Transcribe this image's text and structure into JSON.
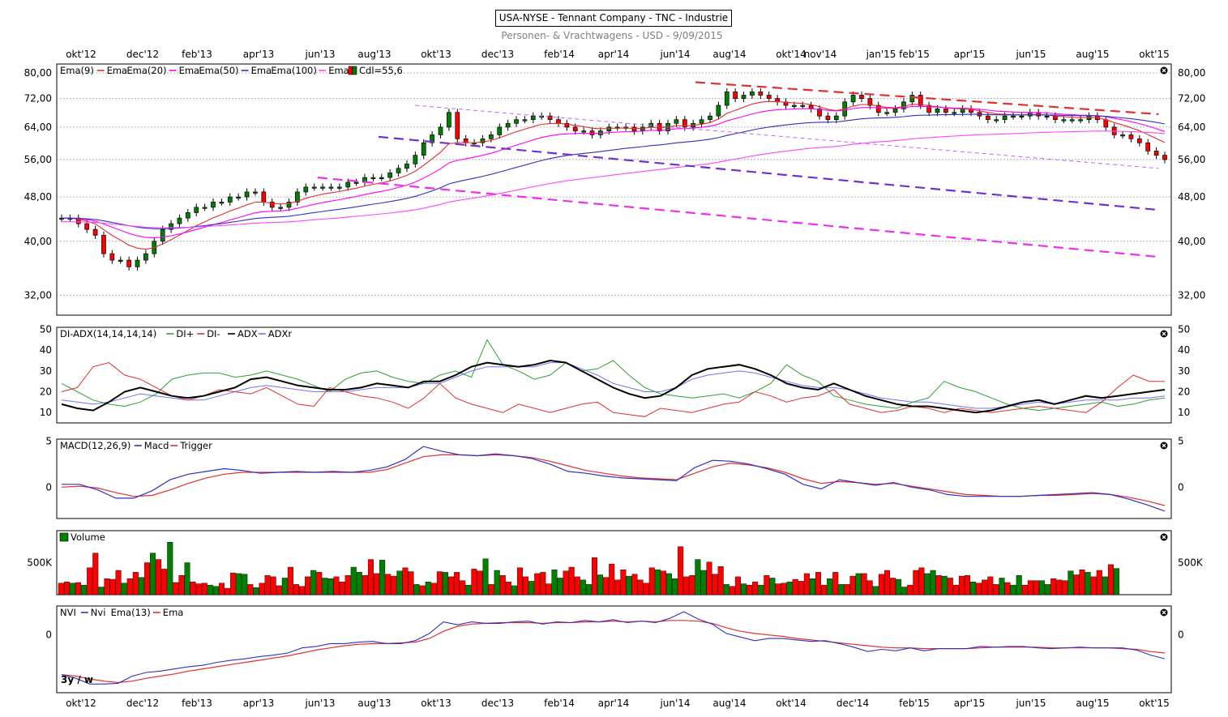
{
  "header": {
    "title": "USA-NYSE - Tennant Company - TNC - Industrie",
    "subtitle": "Personen- & Vrachtwagens - USD - 9/09/2015"
  },
  "period_label": "3y / w",
  "colors": {
    "up": "#008000",
    "down": "#ff0000",
    "ema9": "#e03030",
    "ema20": "#ff00ff",
    "ema50": "#3030c0",
    "ema100": "#ff44ff",
    "di_plus": "#30a030",
    "di_minus": "#e03030",
    "adx": "#000000",
    "adxr": "#7070ff",
    "macd": "#3030c0",
    "trigger": "#e03030",
    "nvi": "#3030c0",
    "nvi_ema": "#e03030"
  },
  "close_icon": "close-icon",
  "chart_data": [
    {
      "type": "candlestick",
      "name": "price",
      "x_tick_labels": [
        "okt'12",
        "dec'12",
        "feb'13",
        "apr'13",
        "jun'13",
        "aug'13",
        "okt'13",
        "dec'13",
        "feb'14",
        "apr'14",
        "jun'14",
        "aug'14",
        "okt'14",
        "nov'14",
        "jan'15",
        "feb'15",
        "apr'15",
        "jun'15",
        "aug'15",
        "okt'15"
      ],
      "x_tick_labels_bottom": [
        "okt'12",
        "dec'12",
        "feb'13",
        "apr'13",
        "jun'13",
        "aug'13",
        "okt'13",
        "dec'13",
        "feb'14",
        "apr'14",
        "jun'14",
        "aug'14",
        "okt'14",
        "dec'14",
        "feb'15",
        "apr'15",
        "jun'15",
        "aug'15",
        "okt'15"
      ],
      "y_scale": "log",
      "y_ticks": [
        "80,00",
        "72,00",
        "64,00",
        "56,00",
        "48,00",
        "40,00",
        "32,00"
      ],
      "y_tick_values": [
        80,
        72,
        64,
        56,
        48,
        40,
        32
      ],
      "ylim": [
        29.5,
        83
      ],
      "legend": [
        "Ema(9)",
        "Ema",
        "Ema(20)",
        "Ema",
        "Ema(50)",
        "Ema",
        "Ema(100)",
        "Ema",
        "Cdl=55,6"
      ],
      "closes": [
        44,
        44,
        43,
        42,
        41,
        38,
        37,
        37,
        36,
        37,
        38,
        40,
        42,
        43,
        44,
        45,
        46,
        46,
        47,
        47,
        48,
        48,
        49,
        49,
        47,
        46,
        46,
        47,
        49,
        50,
        50,
        50,
        50,
        50,
        51,
        51,
        52,
        52,
        52,
        53,
        54,
        55,
        57,
        60,
        62,
        64,
        68,
        61,
        60,
        60,
        61,
        62,
        64,
        65,
        66,
        66,
        67,
        67,
        66,
        65,
        64,
        63,
        63,
        62,
        63,
        64,
        64,
        64,
        63,
        64,
        65,
        63,
        65,
        66,
        64,
        65,
        66,
        67,
        70,
        74,
        72,
        73,
        74,
        73,
        72,
        71,
        70,
        70,
        70,
        69,
        67,
        66,
        67,
        71,
        73,
        72,
        70,
        68,
        68,
        69,
        71,
        73,
        70,
        68,
        69,
        68,
        68,
        69,
        68,
        67,
        66,
        66,
        67,
        67,
        67,
        68,
        67,
        67,
        66,
        66,
        66,
        66,
        67,
        66,
        64,
        62,
        62,
        61,
        60,
        58,
        57,
        56
      ],
      "trend_lines": [
        {
          "from": [
            "week",
            104
          ],
          "to": [
            "week",
            180
          ],
          "values": [
            77,
            67.5
          ],
          "color": "#e03030",
          "style": "dashed"
        },
        {
          "from": [
            "week",
            58
          ],
          "to": [
            "week",
            180
          ],
          "values": [
            70,
            54
          ],
          "color": "#c060ff",
          "style": "dashed-thin"
        },
        {
          "from": [
            "week",
            52
          ],
          "to": [
            "week",
            180
          ],
          "values": [
            61.5,
            45.5
          ],
          "color": "#7030d0",
          "style": "dashed"
        },
        {
          "from": [
            "week",
            42
          ],
          "to": [
            "week",
            180
          ],
          "values": [
            52,
            37.5
          ],
          "color": "#ee30ee",
          "style": "dashed"
        }
      ]
    },
    {
      "type": "line",
      "name": "DI-ADX",
      "legend": [
        "DI-ADX(14,14,14,14)",
        "DI+",
        "DI-",
        "ADX",
        "ADXr"
      ],
      "y_ticks": [
        "50",
        "40",
        "30",
        "20",
        "10"
      ],
      "y_tick_values": [
        50,
        40,
        30,
        20,
        10
      ],
      "ylim": [
        5,
        51
      ],
      "series": [
        {
          "name": "DI+",
          "values": [
            24,
            20,
            16,
            14,
            13,
            15,
            19,
            26,
            28,
            29,
            29,
            27,
            28,
            30,
            28,
            26,
            23,
            20,
            26,
            29,
            30,
            27,
            25,
            24,
            28,
            30,
            27,
            45,
            33,
            30,
            26,
            28,
            34,
            30,
            31,
            35,
            28,
            22,
            19,
            18,
            17,
            18,
            19,
            17,
            20,
            24,
            33,
            28,
            25,
            18,
            16,
            14,
            13,
            12,
            15,
            17,
            25,
            22,
            20,
            17,
            14,
            12,
            11,
            12,
            13,
            14,
            15,
            13,
            14,
            16,
            17
          ]
        },
        {
          "name": "DI-",
          "values": [
            20,
            22,
            32,
            34,
            28,
            26,
            22,
            18,
            16,
            18,
            21,
            20,
            19,
            22,
            18,
            14,
            13,
            22,
            20,
            18,
            17,
            15,
            12,
            17,
            24,
            17,
            14,
            12,
            10,
            14,
            12,
            10,
            12,
            14,
            15,
            10,
            9,
            8,
            12,
            11,
            10,
            12,
            14,
            15,
            20,
            18,
            15,
            17,
            18,
            21,
            14,
            12,
            10,
            11,
            13,
            12,
            10,
            12,
            11,
            10,
            11,
            12,
            13,
            12,
            11,
            10,
            15,
            22,
            28,
            25,
            25
          ]
        },
        {
          "name": "ADX",
          "values": [
            14,
            12,
            11,
            15,
            20,
            22,
            20,
            18,
            17,
            18,
            20,
            22,
            26,
            27,
            25,
            23,
            22,
            21,
            21,
            22,
            24,
            23,
            22,
            25,
            25,
            28,
            32,
            34,
            33,
            32,
            33,
            35,
            34,
            30,
            26,
            22,
            19,
            17,
            18,
            22,
            28,
            31,
            32,
            33,
            31,
            28,
            24,
            22,
            21,
            24,
            21,
            18,
            16,
            14,
            13,
            13,
            12,
            11,
            10,
            11,
            13,
            15,
            16,
            14,
            16,
            18,
            17,
            18,
            19,
            20,
            21
          ]
        },
        {
          "name": "ADXr",
          "values": [
            16,
            15,
            14,
            15,
            17,
            19,
            18,
            17,
            16,
            16,
            18,
            20,
            22,
            23,
            22,
            21,
            20,
            20,
            20,
            21,
            22,
            22,
            22,
            24,
            24,
            27,
            30,
            32,
            32,
            32,
            32,
            34,
            34,
            31,
            28,
            24,
            22,
            20,
            20,
            22,
            26,
            28,
            29,
            30,
            29,
            27,
            25,
            23,
            22,
            22,
            21,
            19,
            17,
            16,
            15,
            15,
            14,
            13,
            12,
            12,
            13,
            14,
            15,
            14,
            15,
            16,
            16,
            16,
            17,
            17,
            18
          ]
        }
      ]
    },
    {
      "type": "line",
      "name": "MACD",
      "legend": [
        "MACD(12,26,9)",
        "Macd",
        "Trigger"
      ],
      "y_ticks": [
        "5",
        "0"
      ],
      "y_tick_values": [
        5,
        0
      ],
      "ylim": [
        -3.4,
        5.2
      ],
      "series": [
        {
          "name": "Macd",
          "values": [
            0.3,
            0.3,
            -0.3,
            -1.2,
            -1.2,
            -0.4,
            0.8,
            1.4,
            1.7,
            2,
            1.8,
            1.5,
            1.6,
            1.7,
            1.6,
            1.7,
            1.6,
            1.8,
            2.2,
            3,
            4.4,
            3.9,
            3.5,
            3.4,
            3.6,
            3.4,
            3.1,
            2.5,
            1.7,
            1.5,
            1.2,
            1,
            0.9,
            0.8,
            0.7,
            2.1,
            2.9,
            2.8,
            2.5,
            2,
            1.4,
            0.3,
            -0.2,
            0.8,
            0.5,
            0.2,
            0.5,
            0,
            -0.3,
            -0.8,
            -1,
            -1,
            -1,
            -1,
            -0.9,
            -0.8,
            -0.7,
            -0.6,
            -0.8,
            -1.3,
            -1.9,
            -2.6
          ]
        },
        {
          "name": "Trigger",
          "values": [
            0,
            0.1,
            -0.1,
            -0.6,
            -1,
            -0.9,
            -0.3,
            0.4,
            1,
            1.4,
            1.6,
            1.6,
            1.6,
            1.6,
            1.6,
            1.6,
            1.6,
            1.6,
            1.9,
            2.6,
            3.3,
            3.5,
            3.5,
            3.4,
            3.5,
            3.4,
            3.2,
            2.8,
            2.3,
            1.8,
            1.5,
            1.2,
            1,
            0.9,
            0.8,
            1.5,
            2.2,
            2.6,
            2.4,
            2.1,
            1.6,
            0.9,
            0.4,
            0.6,
            0.5,
            0.3,
            0.4,
            0.1,
            -0.2,
            -0.5,
            -0.8,
            -0.9,
            -1,
            -1,
            -0.9,
            -0.9,
            -0.8,
            -0.7,
            -0.8,
            -1.1,
            -1.5,
            -2
          ]
        }
      ]
    },
    {
      "type": "bar",
      "name": "Volume",
      "legend": [
        "Volume"
      ],
      "y_ticks": [
        "500K"
      ],
      "y_tick_values": [
        500
      ],
      "ylim": [
        0,
        1000
      ],
      "unit": "K",
      "values": [
        180,
        200,
        180,
        190,
        150,
        420,
        650,
        120,
        250,
        240,
        380,
        180,
        250,
        350,
        270,
        500,
        650,
        550,
        400,
        820,
        190,
        300,
        500,
        200,
        170,
        180,
        150,
        130,
        180,
        100,
        340,
        330,
        320,
        160,
        110,
        180,
        300,
        280,
        140,
        260,
        430,
        160,
        130,
        280,
        380,
        350,
        260,
        250,
        280,
        200,
        300,
        430,
        350,
        300,
        550,
        330,
        540,
        320,
        290,
        370,
        420,
        360,
        160,
        140,
        200,
        180,
        360,
        350,
        280,
        350,
        220,
        150,
        400,
        370,
        560,
        160,
        380,
        300,
        200,
        140,
        420,
        280,
        210,
        330,
        350,
        170,
        390,
        260,
        370,
        430,
        280,
        230,
        160,
        580,
        310,
        270,
        480,
        230,
        390,
        290,
        320,
        230,
        180,
        420,
        390,
        370,
        330,
        250,
        750,
        280,
        300,
        550,
        380,
        510,
        320,
        440,
        160,
        130,
        280,
        170,
        150,
        200,
        150,
        300,
        260,
        170,
        180,
        200,
        240,
        210,
        330,
        250,
        350,
        150,
        250,
        350,
        160,
        160,
        290,
        330,
        330,
        220,
        130,
        320,
        380,
        260,
        240,
        120,
        150,
        380,
        420,
        330,
        380,
        300,
        290,
        260,
        150,
        290,
        300,
        200,
        180,
        230,
        280,
        160,
        260,
        190,
        150,
        300,
        150,
        220,
        220,
        220,
        160,
        250,
        230,
        220,
        370,
        310,
        390,
        350,
        280,
        380,
        280,
        470,
        410
      ]
    },
    {
      "type": "line",
      "name": "NVI",
      "legend": [
        "NVI",
        "Nvi",
        "Ema(13)",
        "Ema"
      ],
      "y_ticks": [
        "0"
      ],
      "y_tick_values": [
        0
      ],
      "ylim": [
        -80,
        40
      ],
      "series": [
        {
          "name": "Nvi",
          "values": [
            -55,
            -60,
            -68,
            -68,
            -67,
            -57,
            -52,
            -50,
            -47,
            -44,
            -42,
            -38,
            -35,
            -33,
            -30,
            -28,
            -25,
            -18,
            -16,
            -12,
            -12,
            -10,
            -9,
            -12,
            -12,
            -8,
            2,
            18,
            14,
            18,
            16,
            16,
            18,
            19,
            15,
            18,
            17,
            20,
            18,
            21,
            17,
            19,
            17,
            23,
            32,
            22,
            15,
            2,
            -3,
            -8,
            -5,
            -5,
            -7,
            -9,
            -8,
            -12,
            -17,
            -23,
            -20,
            -22,
            -18,
            -22,
            -19,
            -19,
            -19,
            -16,
            -17,
            -16,
            -16,
            -18,
            -19,
            -18,
            -17,
            -18,
            -18,
            -18,
            -21,
            -28,
            -33
          ]
        },
        {
          "name": "Ema",
          "values": [
            -55,
            -57,
            -61,
            -64,
            -66,
            -64,
            -60,
            -57,
            -54,
            -50,
            -47,
            -44,
            -41,
            -38,
            -35,
            -32,
            -29,
            -25,
            -21,
            -18,
            -15,
            -13,
            -12,
            -12,
            -11,
            -10,
            -5,
            5,
            12,
            15,
            16,
            17,
            17,
            17,
            16,
            17,
            17,
            18,
            18,
            19,
            18,
            19,
            18,
            20,
            20,
            19,
            16,
            10,
            5,
            2,
            0,
            -2,
            -5,
            -7,
            -9,
            -11,
            -13,
            -15,
            -17,
            -18,
            -18,
            -19,
            -19,
            -19,
            -19,
            -18,
            -17,
            -17,
            -17,
            -17,
            -18,
            -18,
            -18,
            -18,
            -18,
            -19,
            -20,
            -23,
            -25
          ]
        }
      ]
    }
  ]
}
